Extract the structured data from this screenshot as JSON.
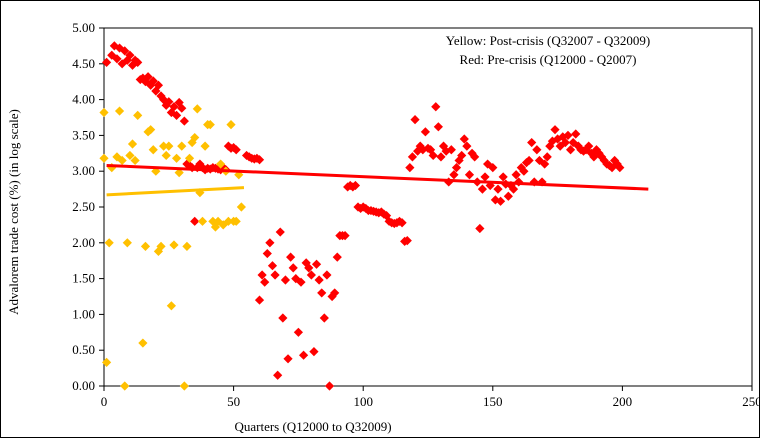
{
  "chart_data": {
    "type": "scatter",
    "title": "",
    "xlabel": "Quarters (Q12000 to Q32009)",
    "ylabel": "Advalorem trade cost (%) (in log scale)",
    "xlim": [
      0,
      250
    ],
    "ylim": [
      0,
      5
    ],
    "x_ticks": [
      "0",
      "50",
      "100",
      "150",
      "200",
      "250"
    ],
    "y_ticks": [
      "0.00",
      "0.50",
      "1.00",
      "1.50",
      "2.00",
      "2.50",
      "3.00",
      "3.50",
      "4.00",
      "4.50",
      "5.00"
    ],
    "grid": false,
    "legend_position": "top-right",
    "annotations": [
      "Yellow: Post-crisis (Q32007 - Q32009)",
      "Red: Pre-crisis (Q12000 - Q2007)"
    ],
    "colors": {
      "pre_crisis": "#ff0000",
      "post_crisis": "#ffc000"
    },
    "series": [
      {
        "key": "pre_crisis",
        "color": "#ff0000",
        "points": [
          [
            1,
            4.52
          ],
          [
            3,
            4.62
          ],
          [
            4,
            4.75
          ],
          [
            5,
            4.57
          ],
          [
            6,
            4.72
          ],
          [
            7,
            4.5
          ],
          [
            8,
            4.68
          ],
          [
            9,
            4.55
          ],
          [
            10,
            4.62
          ],
          [
            11,
            4.48
          ],
          [
            12,
            4.55
          ],
          [
            13,
            4.52
          ],
          [
            14,
            4.28
          ],
          [
            15,
            4.3
          ],
          [
            16,
            4.25
          ],
          [
            17,
            4.32
          ],
          [
            18,
            4.2
          ],
          [
            19,
            4.26
          ],
          [
            20,
            4.12
          ],
          [
            21,
            4.2
          ],
          [
            22,
            4.05
          ],
          [
            23,
            4.0
          ],
          [
            24,
            3.92
          ],
          [
            25,
            3.97
          ],
          [
            26,
            3.82
          ],
          [
            27,
            3.9
          ],
          [
            28,
            3.78
          ],
          [
            29,
            3.96
          ],
          [
            30,
            3.88
          ],
          [
            31,
            3.7
          ],
          [
            32,
            3.1
          ],
          [
            33,
            3.08
          ],
          [
            34,
            3.05
          ],
          [
            35,
            2.3
          ],
          [
            36,
            3.05
          ],
          [
            37,
            3.1
          ],
          [
            38,
            3.05
          ],
          [
            39,
            3.02
          ],
          [
            40,
            3.04
          ],
          [
            41,
            3.03
          ],
          [
            42,
            3.05
          ],
          [
            43,
            3.04
          ],
          [
            44,
            3.03
          ],
          [
            45,
            3.02
          ],
          [
            46,
            3.05
          ],
          [
            47,
            3.02
          ],
          [
            48,
            3.35
          ],
          [
            49,
            3.32
          ],
          [
            50,
            3.33
          ],
          [
            51,
            3.3
          ],
          [
            55,
            3.22
          ],
          [
            56,
            3.2
          ],
          [
            57,
            3.18
          ],
          [
            58,
            3.17
          ],
          [
            59,
            3.18
          ],
          [
            60,
            3.16
          ],
          [
            60,
            1.2
          ],
          [
            61,
            1.55
          ],
          [
            62,
            1.45
          ],
          [
            63,
            1.85
          ],
          [
            64,
            2.0
          ],
          [
            65,
            1.68
          ],
          [
            66,
            1.55
          ],
          [
            67,
            0.15
          ],
          [
            68,
            2.15
          ],
          [
            69,
            0.95
          ],
          [
            70,
            1.48
          ],
          [
            71,
            0.38
          ],
          [
            72,
            1.8
          ],
          [
            73,
            1.65
          ],
          [
            74,
            1.5
          ],
          [
            75,
            0.75
          ],
          [
            76,
            1.45
          ],
          [
            77,
            0.43
          ],
          [
            78,
            1.72
          ],
          [
            79,
            1.65
          ],
          [
            80,
            1.55
          ],
          [
            81,
            0.48
          ],
          [
            82,
            1.7
          ],
          [
            83,
            1.48
          ],
          [
            84,
            1.3
          ],
          [
            85,
            0.95
          ],
          [
            86,
            1.55
          ],
          [
            87,
            0.0
          ],
          [
            88,
            1.25
          ],
          [
            89,
            1.3
          ],
          [
            90,
            1.8
          ],
          [
            91,
            2.1
          ],
          [
            92,
            2.1
          ],
          [
            93,
            2.1
          ],
          [
            94,
            2.78
          ],
          [
            95,
            2.8
          ],
          [
            96,
            2.78
          ],
          [
            97,
            2.8
          ],
          [
            98,
            2.5
          ],
          [
            99,
            2.48
          ],
          [
            100,
            2.5
          ],
          [
            101,
            2.48
          ],
          [
            102,
            2.45
          ],
          [
            103,
            2.45
          ],
          [
            104,
            2.44
          ],
          [
            105,
            2.43
          ],
          [
            106,
            2.42
          ],
          [
            107,
            2.43
          ],
          [
            108,
            2.4
          ],
          [
            109,
            2.38
          ],
          [
            110,
            2.3
          ],
          [
            111,
            2.28
          ],
          [
            112,
            2.27
          ],
          [
            113,
            2.28
          ],
          [
            114,
            2.3
          ],
          [
            115,
            2.28
          ],
          [
            116,
            2.02
          ],
          [
            117,
            2.03
          ],
          [
            118,
            3.05
          ],
          [
            119,
            3.2
          ],
          [
            120,
            3.72
          ],
          [
            121,
            3.28
          ],
          [
            122,
            3.35
          ],
          [
            123,
            3.3
          ],
          [
            124,
            3.55
          ],
          [
            125,
            3.32
          ],
          [
            126,
            3.3
          ],
          [
            127,
            3.22
          ],
          [
            128,
            3.9
          ],
          [
            129,
            3.62
          ],
          [
            130,
            3.2
          ],
          [
            131,
            3.35
          ],
          [
            132,
            3.28
          ],
          [
            133,
            2.85
          ],
          [
            134,
            3.3
          ],
          [
            135,
            2.95
          ],
          [
            136,
            3.05
          ],
          [
            137,
            3.15
          ],
          [
            138,
            3.22
          ],
          [
            139,
            3.45
          ],
          [
            140,
            3.35
          ],
          [
            141,
            2.95
          ],
          [
            142,
            3.25
          ],
          [
            143,
            3.2
          ],
          [
            144,
            2.85
          ],
          [
            145,
            2.2
          ],
          [
            146,
            2.75
          ],
          [
            147,
            2.92
          ],
          [
            148,
            3.1
          ],
          [
            149,
            2.8
          ],
          [
            150,
            3.05
          ],
          [
            151,
            2.6
          ],
          [
            152,
            2.75
          ],
          [
            153,
            2.58
          ],
          [
            154,
            2.92
          ],
          [
            155,
            2.82
          ],
          [
            156,
            2.65
          ],
          [
            157,
            2.8
          ],
          [
            158,
            2.75
          ],
          [
            159,
            2.95
          ],
          [
            160,
            2.85
          ],
          [
            161,
            3.05
          ],
          [
            162,
            3.0
          ],
          [
            163,
            3.12
          ],
          [
            164,
            3.15
          ],
          [
            165,
            3.4
          ],
          [
            166,
            2.85
          ],
          [
            167,
            3.3
          ],
          [
            168,
            3.15
          ],
          [
            169,
            2.85
          ],
          [
            170,
            3.1
          ],
          [
            171,
            3.2
          ],
          [
            172,
            3.35
          ],
          [
            173,
            3.42
          ],
          [
            174,
            3.58
          ],
          [
            175,
            3.45
          ],
          [
            176,
            3.35
          ],
          [
            177,
            3.48
          ],
          [
            178,
            3.4
          ],
          [
            179,
            3.5
          ],
          [
            180,
            3.3
          ],
          [
            181,
            3.4
          ],
          [
            182,
            3.52
          ],
          [
            183,
            3.35
          ],
          [
            184,
            3.3
          ],
          [
            185,
            3.28
          ],
          [
            186,
            3.3
          ],
          [
            187,
            3.35
          ],
          [
            188,
            3.25
          ],
          [
            189,
            3.2
          ],
          [
            190,
            3.3
          ],
          [
            191,
            3.25
          ],
          [
            192,
            3.2
          ],
          [
            193,
            3.15
          ],
          [
            194,
            3.1
          ],
          [
            195,
            3.08
          ],
          [
            196,
            3.05
          ],
          [
            197,
            3.15
          ],
          [
            198,
            3.1
          ],
          [
            199,
            3.05
          ]
        ],
        "trend": [
          [
            1,
            3.08
          ],
          [
            210,
            2.75
          ]
        ]
      },
      {
        "key": "post_crisis",
        "color": "#ffc000",
        "points": [
          [
            0,
            3.82
          ],
          [
            0,
            3.18
          ],
          [
            1,
            0.33
          ],
          [
            2,
            2.0
          ],
          [
            3,
            3.05
          ],
          [
            5,
            3.2
          ],
          [
            6,
            3.84
          ],
          [
            7,
            3.15
          ],
          [
            8,
            0.0
          ],
          [
            9,
            2.0
          ],
          [
            10,
            3.22
          ],
          [
            11,
            3.38
          ],
          [
            12,
            3.15
          ],
          [
            13,
            3.78
          ],
          [
            15,
            0.6
          ],
          [
            16,
            1.95
          ],
          [
            17,
            3.55
          ],
          [
            18,
            3.58
          ],
          [
            19,
            3.3
          ],
          [
            20,
            3.0
          ],
          [
            21,
            1.88
          ],
          [
            22,
            1.95
          ],
          [
            23,
            3.35
          ],
          [
            24,
            3.22
          ],
          [
            25,
            3.35
          ],
          [
            26,
            1.12
          ],
          [
            27,
            1.97
          ],
          [
            28,
            3.18
          ],
          [
            29,
            2.98
          ],
          [
            30,
            3.35
          ],
          [
            31,
            0.0
          ],
          [
            32,
            1.95
          ],
          [
            33,
            3.18
          ],
          [
            34,
            3.4
          ],
          [
            35,
            3.47
          ],
          [
            36,
            3.87
          ],
          [
            37,
            2.7
          ],
          [
            38,
            2.3
          ],
          [
            39,
            3.35
          ],
          [
            40,
            3.65
          ],
          [
            41,
            3.65
          ],
          [
            42,
            2.3
          ],
          [
            43,
            2.22
          ],
          [
            44,
            2.3
          ],
          [
            45,
            3.1
          ],
          [
            46,
            2.25
          ],
          [
            47,
            3.0
          ],
          [
            48,
            2.3
          ],
          [
            49,
            3.65
          ],
          [
            50,
            2.3
          ],
          [
            51,
            2.3
          ],
          [
            52,
            2.95
          ],
          [
            53,
            2.5
          ]
        ],
        "trend": [
          [
            1,
            2.67
          ],
          [
            54,
            2.77
          ]
        ]
      }
    ]
  }
}
